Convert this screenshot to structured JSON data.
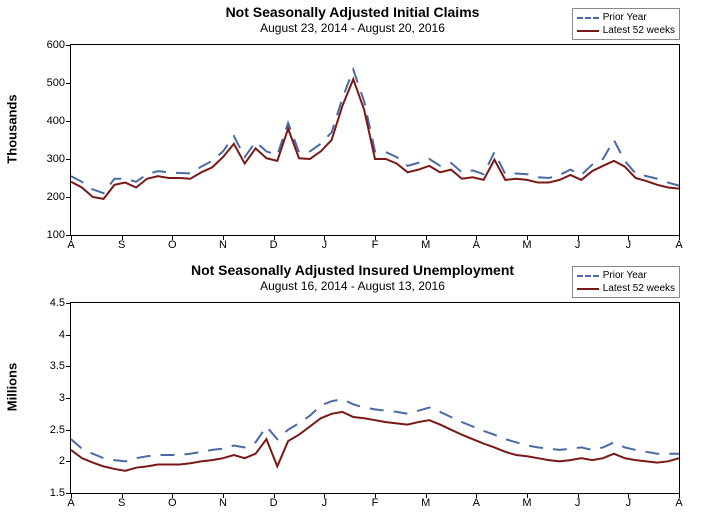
{
  "legend": {
    "prior_label": "Prior Year",
    "latest_label": "Latest 52 weeks",
    "prior_color": "#4a6aa5",
    "latest_color": "#7a1818",
    "prior_style": "dashed",
    "latest_style": "solid",
    "line_width": 2
  },
  "chart1": {
    "type": "line",
    "title": "Not Seasonally Adjusted Initial Claims",
    "subtitle": "August 23, 2014  -  August 20, 2016",
    "title_fontsize": 14,
    "subtitle_fontsize": 12,
    "ylabel": "Thousands",
    "ylim": [
      100,
      600
    ],
    "ytick_step": 100,
    "yticks": [
      100,
      200,
      300,
      400,
      500,
      600
    ],
    "xticks": [
      "A",
      "S",
      "O",
      "N",
      "D",
      "J",
      "F",
      "M",
      "A",
      "M",
      "J",
      "J",
      "A"
    ],
    "background_color": "#ffffff",
    "border_color": "#000000",
    "prior": [
      255,
      240,
      220,
      210,
      248,
      248,
      240,
      260,
      268,
      265,
      263,
      262,
      280,
      295,
      320,
      360,
      305,
      345,
      320,
      310,
      395,
      318,
      320,
      340,
      370,
      460,
      535,
      452,
      320,
      318,
      305,
      282,
      290,
      300,
      282,
      290,
      265,
      270,
      260,
      318,
      260,
      262,
      260,
      252,
      250,
      258,
      272,
      258,
      285,
      300,
      350,
      295,
      262,
      255,
      248,
      238,
      230
    ],
    "latest": [
      240,
      225,
      200,
      195,
      232,
      238,
      225,
      248,
      255,
      250,
      250,
      248,
      265,
      278,
      305,
      340,
      288,
      328,
      302,
      295,
      380,
      302,
      300,
      320,
      350,
      440,
      510,
      430,
      300,
      300,
      288,
      265,
      272,
      282,
      265,
      272,
      248,
      252,
      245,
      298,
      245,
      248,
      245,
      238,
      238,
      245,
      258,
      245,
      268,
      282,
      295,
      280,
      250,
      242,
      232,
      225,
      222
    ]
  },
  "chart2": {
    "type": "line",
    "title": "Not Seasonally Adjusted Insured Unemployment",
    "subtitle": "August 16, 2014  -  August 13, 2016",
    "title_fontsize": 14,
    "subtitle_fontsize": 12,
    "ylabel": "Millions",
    "ylim": [
      1.5,
      4.5
    ],
    "ytick_step": 0.5,
    "yticks": [
      1.5,
      2.0,
      2.5,
      3.0,
      3.5,
      4.0,
      4.5
    ],
    "xticks": [
      "A",
      "S",
      "O",
      "N",
      "D",
      "J",
      "F",
      "M",
      "A",
      "M",
      "J",
      "J",
      "A"
    ],
    "background_color": "#ffffff",
    "border_color": "#000000",
    "prior": [
      2.35,
      2.2,
      2.12,
      2.05,
      2.02,
      2.0,
      2.05,
      2.08,
      2.1,
      2.1,
      2.1,
      2.12,
      2.15,
      2.18,
      2.2,
      2.25,
      2.22,
      2.3,
      2.55,
      2.35,
      2.5,
      2.6,
      2.72,
      2.88,
      2.95,
      2.98,
      2.9,
      2.85,
      2.82,
      2.8,
      2.78,
      2.75,
      2.8,
      2.85,
      2.78,
      2.7,
      2.62,
      2.55,
      2.48,
      2.42,
      2.35,
      2.3,
      2.25,
      2.22,
      2.2,
      2.18,
      2.2,
      2.22,
      2.18,
      2.22,
      2.3,
      2.22,
      2.18,
      2.15,
      2.12,
      2.12,
      2.12
    ],
    "latest": [
      2.18,
      2.05,
      1.98,
      1.92,
      1.88,
      1.85,
      1.9,
      1.92,
      1.95,
      1.95,
      1.95,
      1.97,
      2.0,
      2.02,
      2.05,
      2.1,
      2.05,
      2.12,
      2.35,
      1.92,
      2.32,
      2.42,
      2.55,
      2.68,
      2.75,
      2.78,
      2.7,
      2.68,
      2.65,
      2.62,
      2.6,
      2.58,
      2.62,
      2.65,
      2.58,
      2.5,
      2.42,
      2.35,
      2.28,
      2.22,
      2.15,
      2.1,
      2.08,
      2.05,
      2.02,
      2.0,
      2.02,
      2.05,
      2.02,
      2.05,
      2.12,
      2.05,
      2.02,
      2.0,
      1.98,
      2.0,
      2.05
    ]
  }
}
